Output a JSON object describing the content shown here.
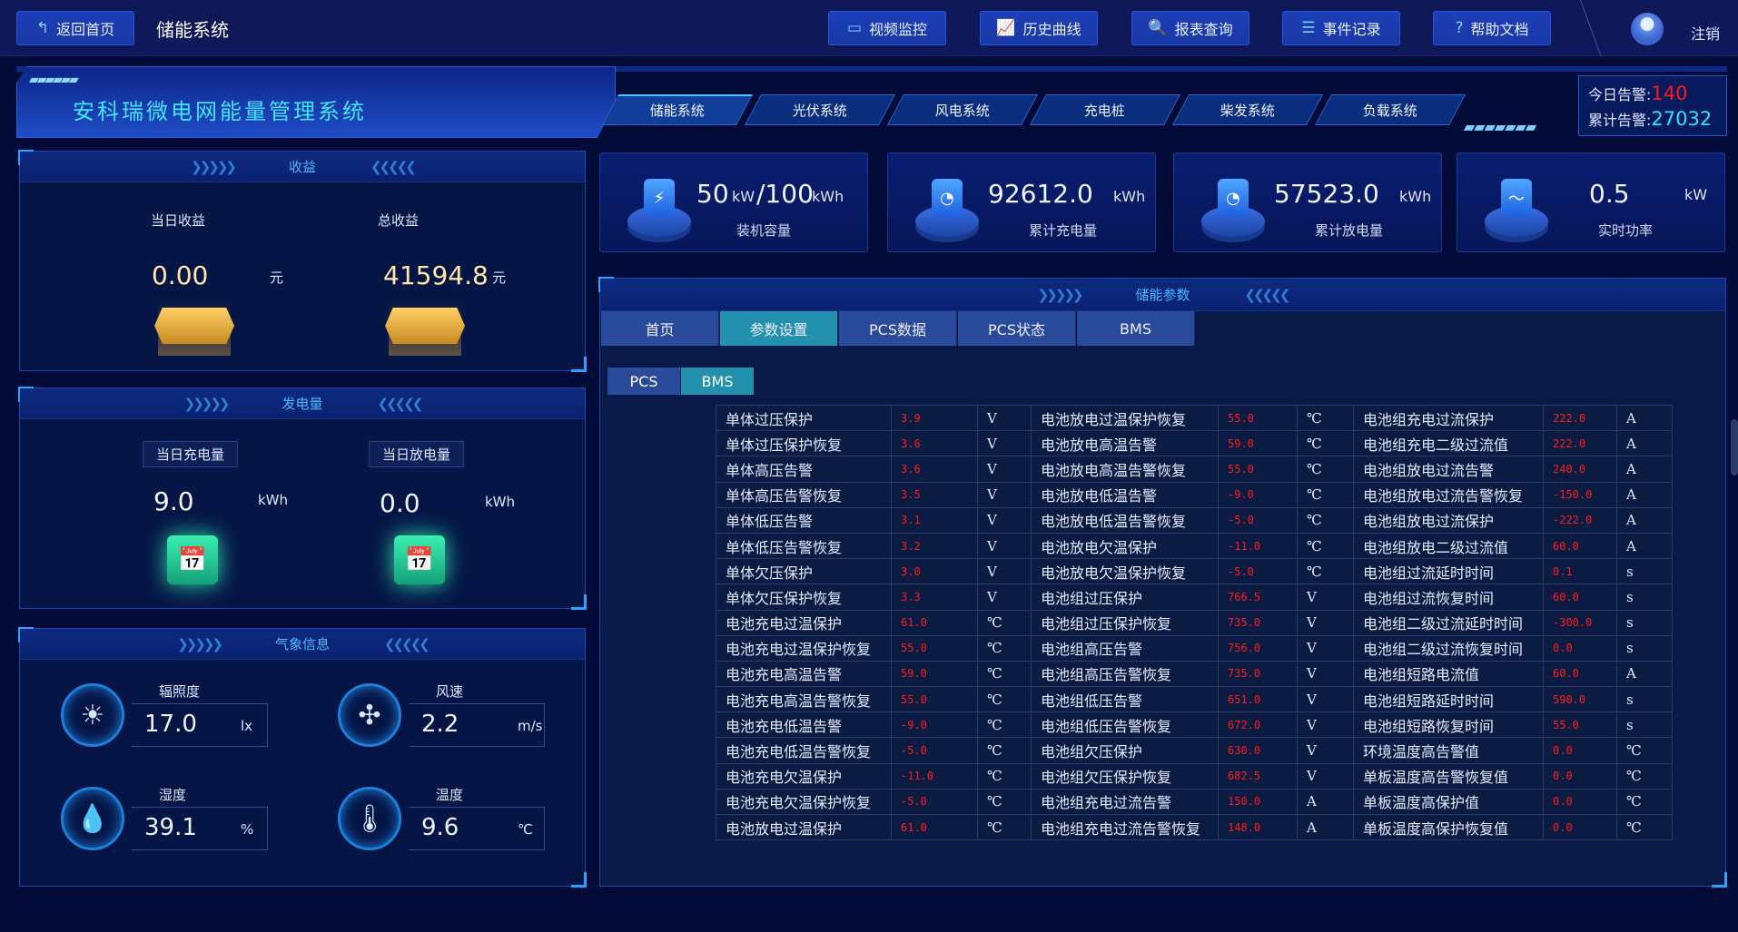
{
  "topbar": {
    "back_label": "返回首页",
    "title": "储能系统",
    "buttons": [
      {
        "label": "视频监控",
        "icon": "video-icon"
      },
      {
        "label": "历史曲线",
        "icon": "chart-icon"
      },
      {
        "label": "报表查询",
        "icon": "search-icon"
      },
      {
        "label": "事件记录",
        "icon": "document-icon"
      },
      {
        "label": "帮助文档",
        "icon": "help-icon"
      }
    ],
    "logout": "注销"
  },
  "banner": {
    "title": "安科瑞微电网能量管理系统",
    "nav": [
      "储能系统",
      "光伏系统",
      "风电系统",
      "充电桩",
      "柴发系统",
      "负载系统"
    ],
    "active_nav": 0
  },
  "alarm": {
    "today_label": "今日告警:",
    "today_value": "140",
    "total_label": "累计告警:",
    "total_value": "27032",
    "today_color": "#ff1a1a",
    "total_color": "#27e4ff"
  },
  "income": {
    "title": "收益",
    "daily_label": "当日收益",
    "daily_value": "0.00",
    "daily_unit": "元",
    "total_label": "总收益",
    "total_value": "41594.8",
    "total_unit": "元"
  },
  "energy": {
    "title": "发电量",
    "charge_label": "当日充电量",
    "charge_value": "9.0",
    "charge_unit": "kWh",
    "discharge_label": "当日放电量",
    "discharge_value": "0.0",
    "discharge_unit": "kWh"
  },
  "weather": {
    "title": "气象信息",
    "items": [
      {
        "label": "辐照度",
        "value": "17.0",
        "unit": "lx",
        "icon": "sun-icon"
      },
      {
        "label": "风速",
        "value": "2.2",
        "unit": "m/s",
        "icon": "fan-icon"
      },
      {
        "label": "湿度",
        "value": "39.1",
        "unit": "%",
        "icon": "humidity-icon"
      },
      {
        "label": "温度",
        "value": "9.6",
        "unit": "℃",
        "icon": "thermometer-icon"
      }
    ]
  },
  "cards": [
    {
      "value": "50",
      "unit": "kW",
      "value2": "/100",
      "unit2": "kWh",
      "label": "装机容量",
      "icon": "battery-icon"
    },
    {
      "value": "92612.0",
      "unit": "kWh",
      "label": "累计充电量",
      "icon": "meter-icon"
    },
    {
      "value": "57523.0",
      "unit": "kWh",
      "label": "累计放电量",
      "icon": "meter-icon"
    },
    {
      "value": "0.5",
      "unit": "kW",
      "label": "实时功率",
      "icon": "pulse-icon"
    }
  ],
  "params": {
    "title": "储能参数",
    "tabs": [
      "首页",
      "参数设置",
      "PCS数据",
      "PCS状态",
      "BMS"
    ],
    "active_tab": 1,
    "subtabs": [
      "PCS",
      "BMS"
    ],
    "active_subtab": 1,
    "rows": [
      [
        "单体过压保护",
        "3.9",
        "V",
        "电池放电过温保护恢复",
        "55.0",
        "℃",
        "电池组充电过流保护",
        "222.0",
        "A"
      ],
      [
        "单体过压保护恢复",
        "3.6",
        "V",
        "电池放电高温告警",
        "59.0",
        "℃",
        "电池组充电二级过流值",
        "222.0",
        "A"
      ],
      [
        "单体高压告警",
        "3.6",
        "V",
        "电池放电高温告警恢复",
        "55.0",
        "℃",
        "电池组放电过流告警",
        "240.0",
        "A"
      ],
      [
        "单体高压告警恢复",
        "3.5",
        "V",
        "电池放电低温告警",
        "-9.0",
        "℃",
        "电池组放电过流告警恢复",
        "-150.0",
        "A"
      ],
      [
        "单体低压告警",
        "3.1",
        "V",
        "电池放电低温告警恢复",
        "-5.0",
        "℃",
        "电池组放电过流保护",
        "-222.0",
        "A"
      ],
      [
        "单体低压告警恢复",
        "3.2",
        "V",
        "电池放电欠温保护",
        "-11.0",
        "℃",
        "电池组放电二级过流值",
        "60.0",
        "A"
      ],
      [
        "单体欠压保护",
        "3.0",
        "V",
        "电池放电欠温保护恢复",
        "-5.0",
        "℃",
        "电池组过流延时时间",
        "0.1",
        "s"
      ],
      [
        "单体欠压保护恢复",
        "3.3",
        "V",
        "电池组过压保护",
        "766.5",
        "V",
        "电池组过流恢复时间",
        "60.0",
        "s"
      ],
      [
        "电池充电过温保护",
        "61.0",
        "℃",
        "电池组过压保护恢复",
        "735.0",
        "V",
        "电池组二级过流延时时间",
        "-300.0",
        "s"
      ],
      [
        "电池充电过温保护恢复",
        "55.0",
        "℃",
        "电池组高压告警",
        "756.0",
        "V",
        "电池组二级过流恢复时间",
        "0.0",
        "s"
      ],
      [
        "电池充电高温告警",
        "59.0",
        "℃",
        "电池组高压告警恢复",
        "735.0",
        "V",
        "电池组短路电流值",
        "60.0",
        "A"
      ],
      [
        "电池充电高温告警恢复",
        "55.0",
        "℃",
        "电池组低压告警",
        "651.0",
        "V",
        "电池组短路延时时间",
        "590.0",
        "s"
      ],
      [
        "电池充电低温告警",
        "-9.0",
        "℃",
        "电池组低压告警恢复",
        "672.0",
        "V",
        "电池组短路恢复时间",
        "55.0",
        "s"
      ],
      [
        "电池充电低温告警恢复",
        "-5.0",
        "℃",
        "电池组欠压保护",
        "630.0",
        "V",
        "环境温度高告警值",
        "0.0",
        "℃"
      ],
      [
        "电池充电欠温保护",
        "-11.0",
        "℃",
        "电池组欠压保护恢复",
        "682.5",
        "V",
        "单板温度高告警恢复值",
        "0.0",
        "℃"
      ],
      [
        "电池充电欠温保护恢复",
        "-5.0",
        "℃",
        "电池组充电过流告警",
        "150.0",
        "A",
        "单板温度高保护值",
        "0.0",
        "℃"
      ],
      [
        "电池放电过温保护",
        "61.0",
        "℃",
        "电池组充电过流告警恢复",
        "148.0",
        "A",
        "单板温度高保护恢复值",
        "0.0",
        "℃"
      ]
    ]
  }
}
